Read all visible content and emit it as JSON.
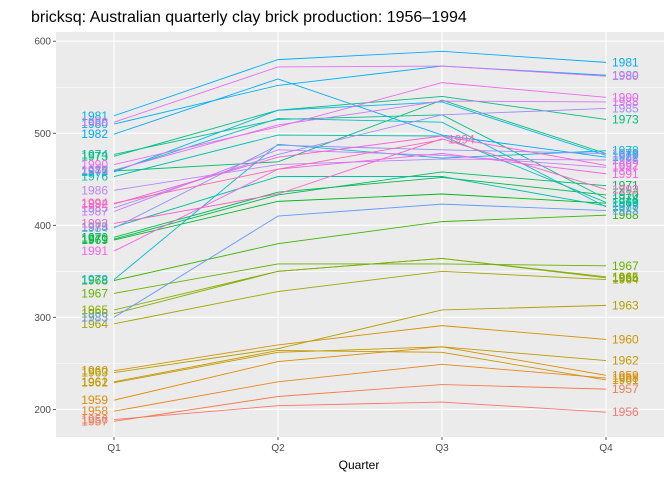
{
  "chart_data": {
    "type": "line",
    "title": "bricksq: Australian quarterly clay brick production: 1956–1994",
    "xlabel": "Quarter",
    "ylabel": "",
    "categories": [
      "Q1",
      "Q2",
      "Q3",
      "Q4"
    ],
    "ylim": [
      170,
      610
    ],
    "y_ticks": [
      200,
      300,
      400,
      500,
      600
    ],
    "grid": true,
    "legend": "none",
    "series": [
      {
        "name": "1956",
        "color": "#F8766D",
        "values": [
          189,
          204,
          208,
          197
        ]
      },
      {
        "name": "1957",
        "color": "#F17E4D",
        "values": [
          187,
          214,
          227,
          222
        ]
      },
      {
        "name": "1958",
        "color": "#E7861B",
        "values": [
          198,
          230,
          249,
          234
        ]
      },
      {
        "name": "1959",
        "color": "#DE8C00",
        "values": [
          210,
          252,
          268,
          237
        ]
      },
      {
        "name": "1960",
        "color": "#D49200",
        "values": [
          242,
          270,
          291,
          276
        ]
      },
      {
        "name": "1961",
        "color": "#C99800",
        "values": [
          230,
          264,
          262,
          232
        ]
      },
      {
        "name": "1962",
        "color": "#BE9C00",
        "values": [
          229,
          262,
          268,
          253
        ]
      },
      {
        "name": "1963",
        "color": "#B2A100",
        "values": [
          240,
          266,
          308,
          313
        ]
      },
      {
        "name": "1964",
        "color": "#A3A500",
        "values": [
          293,
          328,
          350,
          341
        ]
      },
      {
        "name": "1965",
        "color": "#93AA00",
        "values": [
          308,
          350,
          364,
          344
        ]
      },
      {
        "name": "1966",
        "color": "#7FAE00",
        "values": [
          304,
          350,
          364,
          343
        ]
      },
      {
        "name": "1967",
        "color": "#66B200",
        "values": [
          326,
          358,
          358,
          356
        ]
      },
      {
        "name": "1968",
        "color": "#39B600",
        "values": [
          340,
          380,
          404,
          411
        ]
      },
      {
        "name": "1969",
        "color": "#00B81F",
        "values": [
          384,
          426,
          434,
          424
        ]
      },
      {
        "name": "1970",
        "color": "#00BA42",
        "values": [
          387,
          436,
          452,
          433
        ]
      },
      {
        "name": "1971",
        "color": "#00BC59",
        "values": [
          385,
          433,
          458,
          443
        ]
      },
      {
        "name": "1972",
        "color": "#00BD73",
        "values": [
          459,
          469,
          536,
          478
        ]
      },
      {
        "name": "1973",
        "color": "#00BF7D",
        "values": [
          475,
          525,
          540,
          515
        ]
      },
      {
        "name": "1974",
        "color": "#00C08B",
        "values": [
          477,
          515,
          520,
          429
        ]
      },
      {
        "name": "1975",
        "color": "#00C1A1",
        "values": [
          398,
          453,
          453,
          421
        ]
      },
      {
        "name": "1976",
        "color": "#00C0B0",
        "values": [
          453,
          498,
          497,
          425
        ]
      },
      {
        "name": "1977",
        "color": "#00BFC4",
        "values": [
          459,
          516,
          512,
          420
        ]
      },
      {
        "name": "1978",
        "color": "#00BCD8",
        "values": [
          341,
          488,
          473,
          481
        ]
      },
      {
        "name": "1979",
        "color": "#00B8E7",
        "values": [
          458,
          525,
          534,
          476
        ]
      },
      {
        "name": "1980",
        "color": "#00B4F0",
        "values": [
          510,
          552,
          573,
          563
        ]
      },
      {
        "name": "1981",
        "color": "#00ADFA",
        "values": [
          519,
          580,
          589,
          577
        ]
      },
      {
        "name": "1982",
        "color": "#00A9FF",
        "values": [
          499,
          559,
          498,
          474
        ]
      },
      {
        "name": "1983",
        "color": "#619CFF",
        "values": [
          300,
          410,
          423,
          416
        ]
      },
      {
        "name": "1984",
        "color": "#8B93FF",
        "values": [
          397,
          487,
          482,
          478
        ]
      },
      {
        "name": "1985",
        "color": "#A58AFF",
        "values": [
          419,
          477,
          520,
          527
        ]
      },
      {
        "name": "1986",
        "color": "#B983FF",
        "values": [
          438,
          466,
          472,
          471
        ]
      },
      {
        "name": "1987",
        "color": "#C77CFF",
        "values": [
          415,
          482,
          476,
          463
        ]
      },
      {
        "name": "1988",
        "color": "#D772F8",
        "values": [
          460,
          509,
          535,
          534
        ]
      },
      {
        "name": "1989",
        "color": "#E36EF6",
        "values": [
          512,
          572,
          573,
          562
        ]
      },
      {
        "name": "1990",
        "color": "#ED68ED",
        "values": [
          466,
          507,
          555,
          539
        ]
      },
      {
        "name": "1991",
        "color": "#F564E3",
        "values": [
          372,
          461,
          478,
          456
        ]
      },
      {
        "name": "1992",
        "color": "#FB61D7",
        "values": [
          423,
          474,
          497,
          465
        ]
      },
      {
        "name": "1993",
        "color": "#FF61C9",
        "values": [
          402,
          434,
          494,
          439
        ]
      },
      {
        "name": "1994",
        "color": "#FF66AD",
        "values": [
          424,
          461,
          493,
          null
        ]
      }
    ]
  }
}
